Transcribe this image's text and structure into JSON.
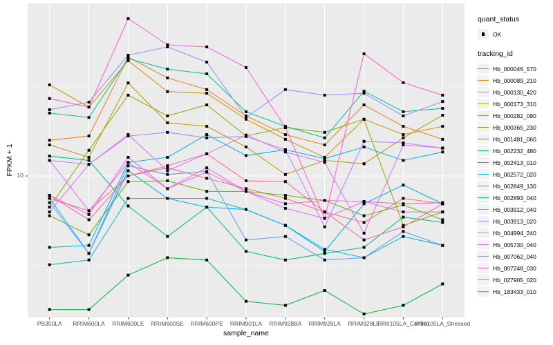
{
  "labels": {
    "y_axis_title": "FPKM + 1",
    "x_axis_title": "sample_name",
    "y_tick_label": "10"
  },
  "legend": {
    "quant_status_title": "quant_status",
    "ok_label": "OK",
    "tracking_id_title": "tracking_id"
  },
  "chart_data": {
    "type": "line",
    "title": "",
    "xlabel": "sample_name",
    "ylabel": "FPKM + 1",
    "y_scale": "log10",
    "ylim": [
      1.63,
      90.7
    ],
    "y_breaks": [
      10
    ],
    "y_minor_breaks": [
      3.162,
      31.62
    ],
    "grid": true,
    "legend_position": "right",
    "marker": "black-square",
    "panel_bg": "#EBEBEB",
    "grid_color": "#FFFFFF",
    "categories": [
      "PB350LA",
      "RRIM600LA",
      "RRIM600LE",
      "RRIM600SE",
      "RRIM600PE",
      "RRIM901LA",
      "RRIM928BA",
      "RRIM928LA",
      "RRIM928LE",
      "RRII105LA_Control",
      "RRII105LA_Stressed"
    ],
    "series": [
      {
        "name": "Hb_000046_570",
        "color": "#F8766D",
        "values": [
          7.5,
          6.4,
          10.0,
          11.1,
          9.7,
          8.5,
          7.5,
          6.3,
          5.5,
          7.5,
          7.0
        ]
      },
      {
        "name": "Hb_000089_210",
        "color": "#E88526",
        "values": [
          15.8,
          16.7,
          45.9,
          35.2,
          30.3,
          21.6,
          17.0,
          14.9,
          24.9,
          18.9,
          16.0
        ]
      },
      {
        "name": "Hb_000130_420",
        "color": "#D39200",
        "values": [
          32.2,
          24.2,
          43.9,
          29.5,
          28.9,
          20.7,
          16.0,
          12.7,
          20.7,
          17.0,
          18.9
        ]
      },
      {
        "name": "Hb_000173_310",
        "color": "#B79F00",
        "values": [
          14.9,
          12.7,
          33.0,
          19.8,
          18.9,
          14.5,
          10.2,
          12.2,
          11.7,
          16.3,
          21.8
        ]
      },
      {
        "name": "Hb_000282_090",
        "color": "#93AA00",
        "values": [
          6.7,
          13.9,
          28.2,
          21.6,
          24.9,
          16.7,
          18.6,
          17.5,
          20.7,
          5.3,
          6.3
        ]
      },
      {
        "name": "Hb_000365_230",
        "color": "#64B200",
        "values": [
          6.0,
          4.7,
          9.3,
          9.4,
          8.2,
          8.2,
          7.8,
          7.3,
          6.0,
          6.9,
          5.7
        ]
      },
      {
        "name": "Hb_001481_060",
        "color": "#00BA38",
        "values": [
          1.8,
          1.8,
          2.8,
          3.5,
          3.4,
          2.0,
          1.9,
          2.3,
          1.7,
          1.9,
          2.5
        ]
      },
      {
        "name": "Hb_002232_480",
        "color": "#00BF7D",
        "values": [
          12.9,
          12.2,
          6.8,
          4.6,
          6.7,
          3.8,
          3.4,
          3.7,
          4.0,
          5.9,
          5.5
        ]
      },
      {
        "name": "Hb_002413_010",
        "color": "#00C19F",
        "values": [
          22.4,
          21.2,
          45.1,
          39.4,
          37.1,
          22.8,
          18.9,
          16.3,
          29.7,
          22.8,
          23.8
        ]
      },
      {
        "name": "Hb_002572_020",
        "color": "#00BFC4",
        "values": [
          3.2,
          3.4,
          7.5,
          7.5,
          7.5,
          6.5,
          5.3,
          3.9,
          3.5,
          4.6,
          4.1
        ]
      },
      {
        "name": "Hb_002849_130",
        "color": "#00B9E3",
        "values": [
          4.0,
          4.1,
          11.9,
          12.7,
          17.0,
          13.0,
          14.0,
          12.5,
          14.5,
          12.2,
          13.6
        ]
      },
      {
        "name": "Hb_002893_040",
        "color": "#00ADFA",
        "values": [
          7.5,
          3.7,
          10.7,
          7.5,
          6.7,
          6.5,
          5.3,
          3.8,
          7.0,
          8.9,
          7.0
        ]
      },
      {
        "name": "Hb_003912_040",
        "color": "#619CFF",
        "values": [
          7.1,
          3.7,
          11.4,
          10.2,
          10.6,
          4.4,
          4.6,
          3.4,
          3.5,
          4.9,
          4.1
        ]
      },
      {
        "name": "Hb_003913_020",
        "color": "#9590FF",
        "values": [
          23.4,
          25.8,
          47.1,
          52.4,
          43.1,
          21.2,
          30.3,
          28.2,
          28.9,
          21.6,
          26.0
        ]
      },
      {
        "name": "Hb_004994_240",
        "color": "#B983FF",
        "values": [
          12.2,
          11.6,
          16.7,
          17.5,
          16.3,
          16.6,
          14.0,
          5.2,
          15.6,
          15.3,
          14.3
        ]
      },
      {
        "name": "Hb_005730_040",
        "color": "#DA72FB",
        "values": [
          6.3,
          11.6,
          17.0,
          10.7,
          13.3,
          16.9,
          13.6,
          11.9,
          4.8,
          14.9,
          14.3
        ]
      },
      {
        "name": "Hb_007062_040",
        "color": "#E76BF3",
        "values": [
          12.2,
          6.4,
          11.9,
          8.5,
          10.5,
          8.2,
          6.6,
          5.8,
          7.2,
          6.3,
          6.3
        ]
      },
      {
        "name": "Hb_007248_030",
        "color": "#F564E3",
        "values": [
          7.8,
          6.1,
          12.7,
          8.5,
          11.1,
          8.2,
          7.0,
          7.3,
          7.2,
          7.0,
          7.1
        ]
      },
      {
        "name": "Hb_027905_020",
        "color": "#FD61D1",
        "values": [
          27.0,
          24.2,
          75.3,
          53.8,
          52.4,
          40.2,
          18.6,
          5.8,
          48.0,
          33.1,
          28.2
        ]
      },
      {
        "name": "Hb_183433_010",
        "color": "#FF65AC",
        "values": [
          7.8,
          5.7,
          10.0,
          11.4,
          13.3,
          9.4,
          9.3,
          6.3,
          4.4,
          5.2,
          7.0
        ]
      }
    ]
  }
}
